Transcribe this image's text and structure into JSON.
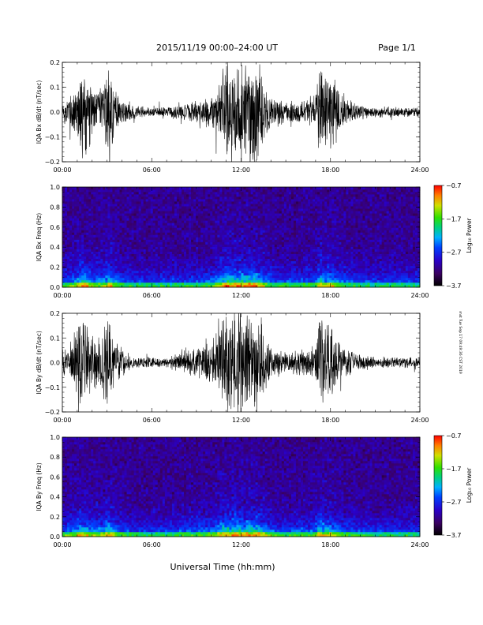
{
  "header": {
    "date_range": "2015/11/19   00:00–24:00 UT",
    "page": "Page 1/1"
  },
  "side_note": "mst Tue Sep 17 09:49:36 CST 2019",
  "chart_data": [
    {
      "type": "line",
      "ylabel": "IQA Bx dB/dt (nT/sec)",
      "ylim": [
        -0.2,
        0.2
      ],
      "yticks": [
        "0.2",
        "0.1",
        "0.0",
        "−0.1",
        "−0.2"
      ],
      "yticks_values": [
        0.2,
        0.1,
        0.0,
        -0.1,
        -0.2
      ],
      "x_ticks": [
        "00:00",
        "06:00",
        "12:00",
        "18:00",
        "24:00"
      ],
      "xlim_hours": [
        0,
        24
      ],
      "series": [
        {
          "x_hours": [
            0,
            0.5,
            1,
            1.3,
            1.6,
            2,
            2.5,
            2.9,
            3.2,
            3.5,
            4,
            5,
            6,
            7,
            8,
            9,
            10,
            10.5,
            11,
            11.5,
            12,
            12.5,
            13,
            13.5,
            14,
            15,
            16,
            17,
            17.3,
            17.6,
            18,
            18.5,
            19,
            20,
            21,
            22,
            23,
            24
          ],
          "envelope": [
            0.04,
            0.06,
            0.12,
            0.2,
            0.16,
            0.1,
            0.08,
            0.14,
            0.2,
            0.08,
            0.05,
            0.02,
            0.02,
            0.02,
            0.03,
            0.04,
            0.06,
            0.1,
            0.2,
            0.2,
            0.2,
            0.2,
            0.2,
            0.12,
            0.05,
            0.04,
            0.05,
            0.06,
            0.2,
            0.14,
            0.16,
            0.08,
            0.05,
            0.03,
            0.02,
            0.02,
            0.02,
            0.015
          ]
        }
      ]
    },
    {
      "type": "heatmap",
      "ylabel": "IQA Bx Freq (Hz)",
      "ylim": [
        0.0,
        1.0
      ],
      "yticks": [
        "1.0",
        "0.8",
        "0.6",
        "0.4",
        "0.2",
        "0.0"
      ],
      "yticks_values": [
        1.0,
        0.8,
        0.6,
        0.4,
        0.2,
        0.0
      ],
      "x_ticks": [
        "00:00",
        "06:00",
        "12:00",
        "18:00",
        "24:00"
      ],
      "colorbar": {
        "label": "Log₁₀ Power",
        "ticks": [
          "−0.7",
          "−1.7",
          "−2.7",
          "−3.7"
        ],
        "range": [
          -3.7,
          -0.7
        ]
      }
    },
    {
      "type": "line",
      "ylabel": "IQA By dB/dt (nT/sec)",
      "ylim": [
        -0.2,
        0.2
      ],
      "yticks": [
        "0.2",
        "0.1",
        "0.0",
        "−0.1",
        "−0.2"
      ],
      "yticks_values": [
        0.2,
        0.1,
        0.0,
        -0.1,
        -0.2
      ],
      "x_ticks": [
        "00:00",
        "06:00",
        "12:00",
        "18:00",
        "24:00"
      ],
      "xlim_hours": [
        0,
        24
      ],
      "series": [
        {
          "x_hours": [
            0,
            0.5,
            1,
            1.3,
            1.6,
            2,
            2.5,
            2.9,
            3.2,
            3.5,
            4,
            5,
            6,
            7,
            8,
            9,
            10,
            10.5,
            11,
            11.5,
            12,
            12.5,
            13,
            13.5,
            14,
            15,
            16,
            17,
            17.3,
            17.6,
            18,
            18.5,
            19,
            20,
            21,
            22,
            23,
            24
          ],
          "envelope": [
            0.05,
            0.07,
            0.12,
            0.18,
            0.14,
            0.1,
            0.1,
            0.16,
            0.2,
            0.1,
            0.05,
            0.02,
            0.02,
            0.02,
            0.04,
            0.06,
            0.08,
            0.14,
            0.2,
            0.2,
            0.2,
            0.2,
            0.2,
            0.14,
            0.06,
            0.04,
            0.05,
            0.06,
            0.2,
            0.14,
            0.16,
            0.08,
            0.05,
            0.03,
            0.02,
            0.02,
            0.02,
            0.02
          ]
        }
      ]
    },
    {
      "type": "heatmap",
      "ylabel": "IQA By Freq (Hz)",
      "ylim": [
        0.0,
        1.0
      ],
      "yticks": [
        "1.0",
        "0.8",
        "0.6",
        "0.4",
        "0.2",
        "0.0"
      ],
      "yticks_values": [
        1.0,
        0.8,
        0.6,
        0.4,
        0.2,
        0.0
      ],
      "x_ticks": [
        "00:00",
        "06:00",
        "12:00",
        "18:00",
        "24:00"
      ],
      "colorbar": {
        "label": "Log₁₀ Power",
        "ticks": [
          "−0.7",
          "−1.7",
          "−2.7",
          "−3.7"
        ],
        "range": [
          -3.7,
          -0.7
        ]
      }
    }
  ],
  "xlabel": "Universal Time (hh:mm)"
}
